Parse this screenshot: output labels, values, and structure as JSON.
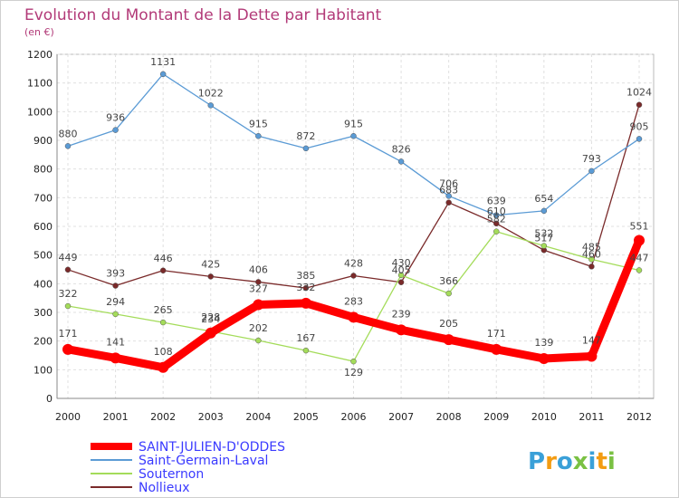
{
  "chart_data": {
    "type": "line",
    "title": "Evolution du Montant de la Dette par Habitant",
    "subtitle": "(en €)",
    "x": [
      "2000",
      "2001",
      "2002",
      "2003",
      "2004",
      "2005",
      "2006",
      "2007",
      "2008",
      "2009",
      "2010",
      "2011",
      "2012"
    ],
    "ylim": [
      0,
      1200
    ],
    "yticks": [
      0,
      100,
      200,
      300,
      400,
      500,
      600,
      700,
      800,
      900,
      1000,
      1100,
      1200
    ],
    "grid": true,
    "legend_position": "bottom-left",
    "series": [
      {
        "name": "SAINT-JULIEN-D'ODDES",
        "color": "#ff0000",
        "label_color": "#3a3aff",
        "values": [
          171,
          141,
          108,
          228,
          327,
          332,
          283,
          239,
          205,
          171,
          139,
          147,
          551
        ],
        "labels": [
          "171",
          "141",
          "108",
          "228",
          "327",
          "332",
          "283",
          "239",
          "205",
          "171",
          "139",
          "147",
          "551"
        ]
      },
      {
        "name": "Saint-Germain-Laval",
        "color": "#5b9bd5",
        "label_color": "#3a3aff",
        "values": [
          880,
          936,
          1131,
          1022,
          915,
          872,
          915,
          826,
          706,
          639,
          654,
          793,
          905
        ],
        "labels": [
          "880",
          "936",
          "1131",
          "1022",
          "915",
          "872",
          "915",
          "826",
          "706",
          "639",
          "654",
          "793",
          "905"
        ]
      },
      {
        "name": "Souternon",
        "color": "#a4dc5a",
        "label_color": "#3a3aff",
        "values": [
          322,
          294,
          265,
          234,
          202,
          167,
          129,
          430,
          366,
          582,
          532,
          485,
          447
        ],
        "labels": [
          "322",
          "294",
          "265",
          "234",
          "202",
          "167",
          "129",
          "430",
          "366",
          "582",
          "532",
          "485",
          "447"
        ]
      },
      {
        "name": "Nollieux",
        "color": "#7a2a2a",
        "label_color": "#3a3aff",
        "values": [
          449,
          393,
          446,
          425,
          406,
          385,
          428,
          405,
          683,
          610,
          517,
          460,
          1024
        ],
        "labels": [
          "449",
          "393",
          "446",
          "425",
          "406",
          "385",
          "428",
          "405",
          "683",
          "610",
          "517",
          "460",
          "1024"
        ]
      }
    ]
  },
  "logo": {
    "text": "Proxiti"
  }
}
